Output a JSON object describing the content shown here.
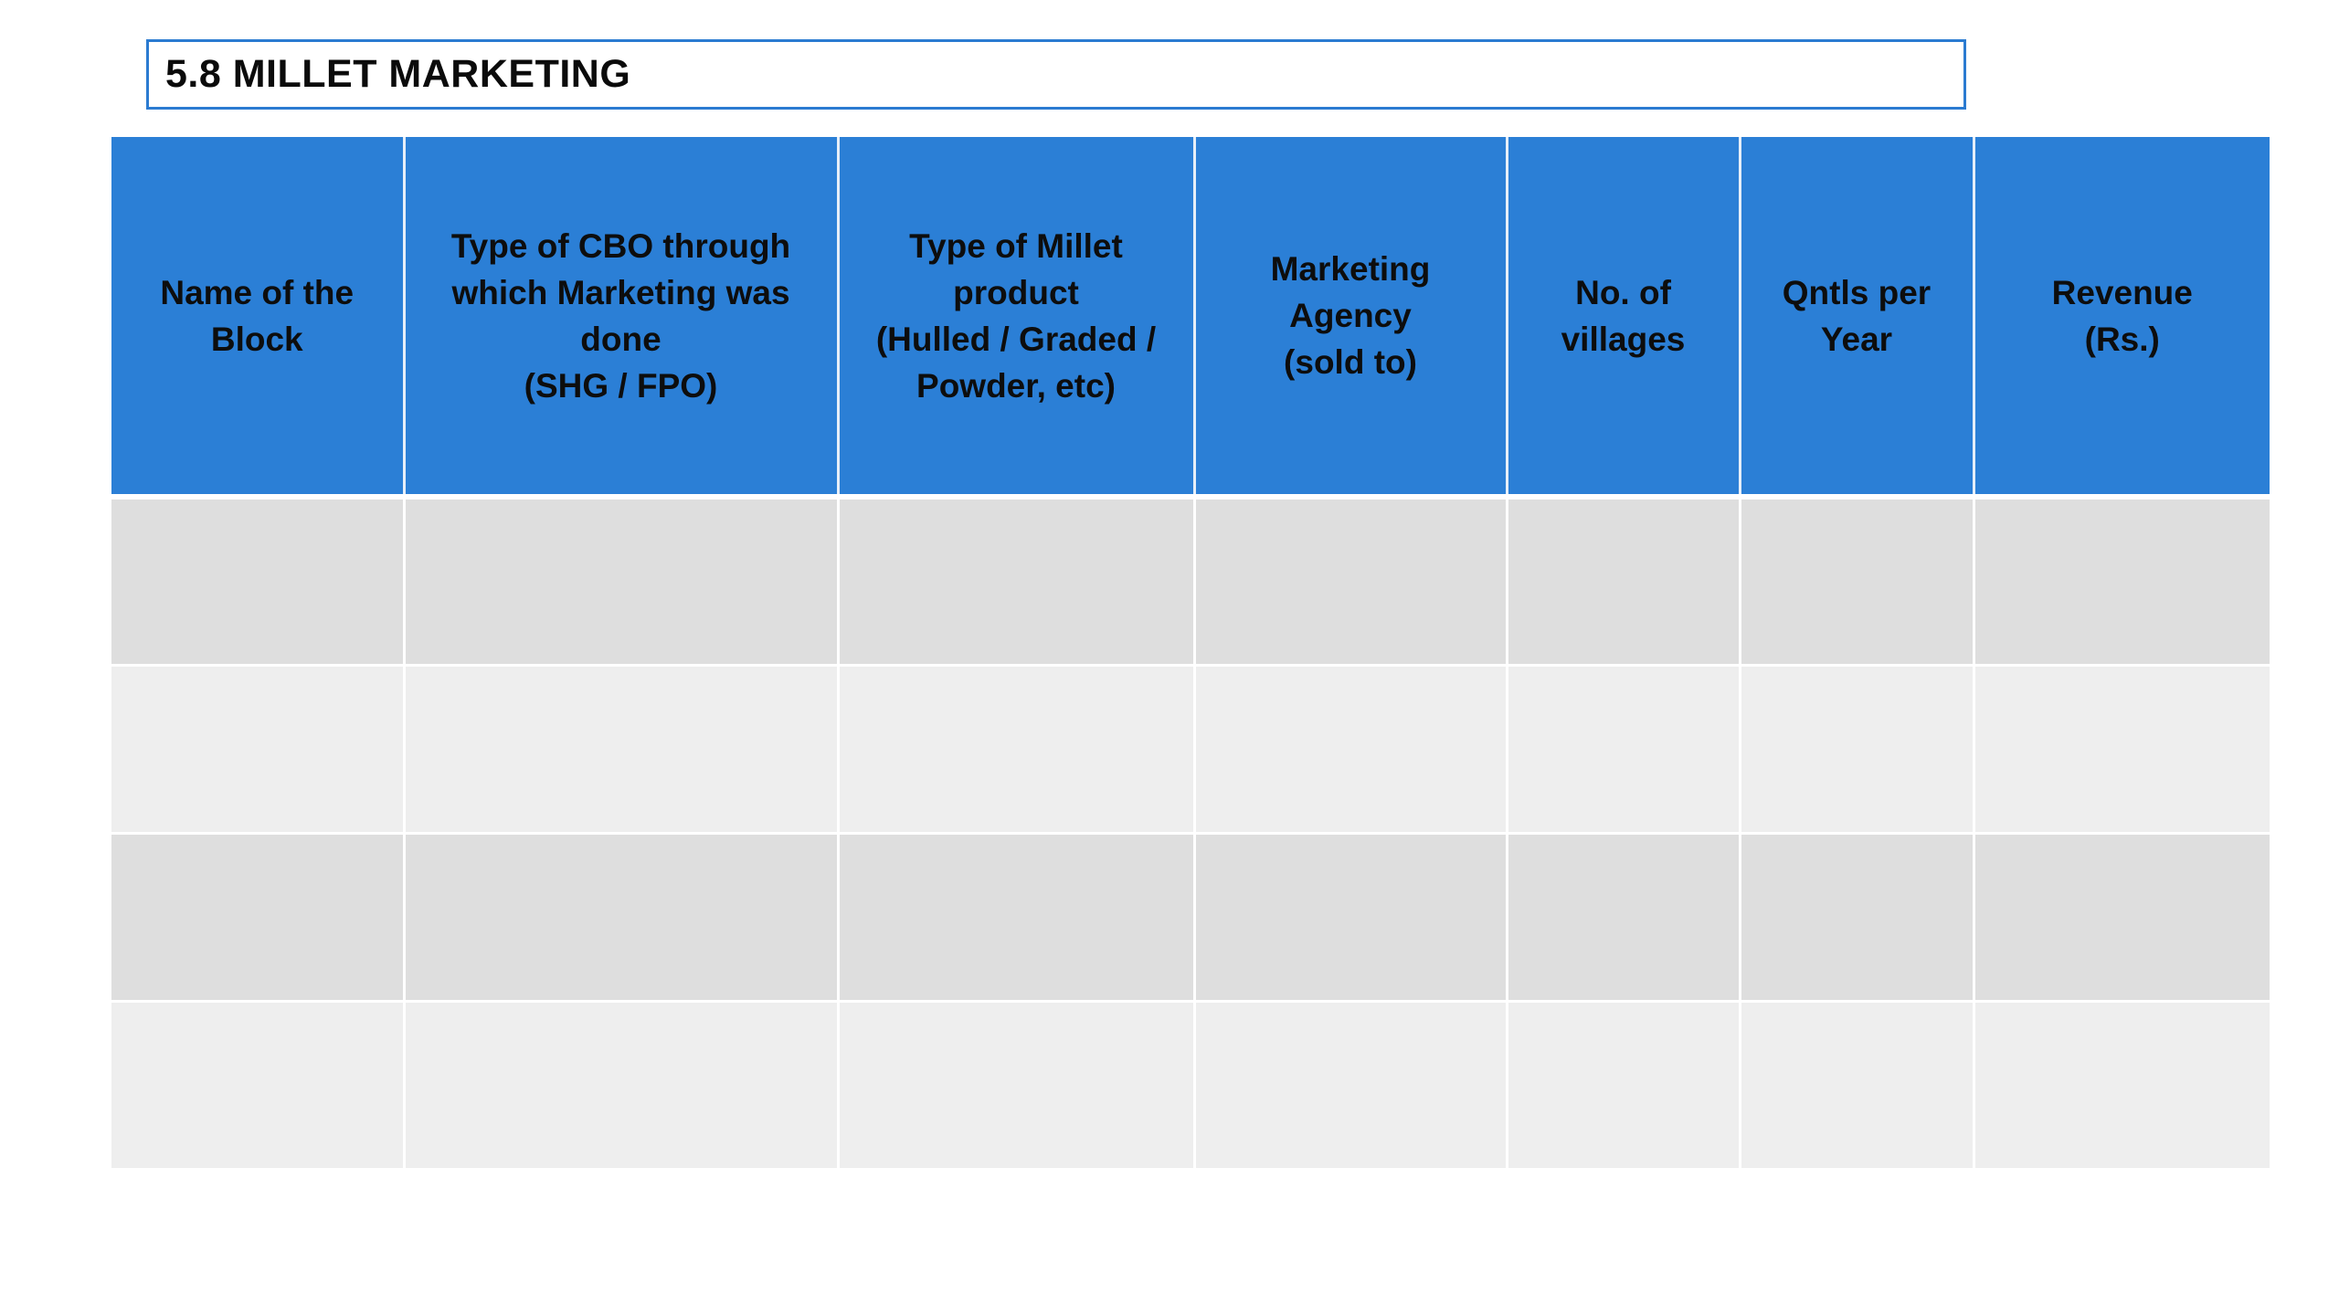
{
  "title": "5.8 MILLET MARKETING",
  "colors": {
    "header_bg": "#2b7fd6",
    "title_border": "#2b7bd1",
    "row_odd": "#dedede",
    "row_even": "#eeeeee"
  },
  "table": {
    "headers": [
      [
        "Name  of the",
        "Block"
      ],
      [
        "Type of CBO through",
        "which Marketing was",
        "done",
        "(SHG / FPO)"
      ],
      [
        "Type of Millet",
        "product",
        "(Hulled / Graded /",
        "Powder, etc)"
      ],
      [
        "Marketing",
        "Agency",
        "(sold to)"
      ],
      [
        "No. of",
        "villages"
      ],
      [
        "Qntls per",
        "Year"
      ],
      [
        "Revenue",
        "(Rs.)"
      ]
    ],
    "rows": [
      [
        "",
        "",
        "",
        "",
        "",
        "",
        ""
      ],
      [
        "",
        "",
        "",
        "",
        "",
        "",
        ""
      ],
      [
        "",
        "",
        "",
        "",
        "",
        "",
        ""
      ],
      [
        "",
        "",
        "",
        "",
        "",
        "",
        ""
      ]
    ]
  }
}
